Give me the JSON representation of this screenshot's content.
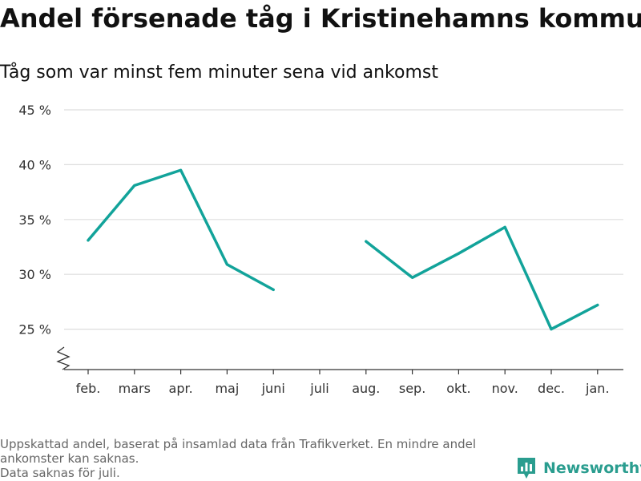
{
  "title": "Andel försenade tåg i Kristinehamns kommun",
  "subtitle": "Tåg som var minst fem minuter sena vid ankomst",
  "footnote": {
    "line1": "Uppskattad andel, baserat på insamlad data från Trafikverket. En mindre andel",
    "line2": "ankomster kan saknas.",
    "line3": "Data saknas för juli."
  },
  "logo": {
    "text": "Newsworthy",
    "icon": "bar-chart-logo-icon"
  },
  "colors": {
    "line": "#12a39a",
    "grid": "#dddddd",
    "axis": "#333333"
  },
  "chart_data": {
    "type": "line",
    "categories": [
      "feb.",
      "mars",
      "apr.",
      "maj",
      "juni",
      "juli",
      "aug.",
      "sep.",
      "okt.",
      "nov.",
      "dec.",
      "jan."
    ],
    "series": [
      {
        "values": [
          33.1,
          38.1,
          39.5,
          30.9,
          28.6,
          null,
          33.0,
          29.7,
          31.9,
          34.3,
          25.0,
          27.2
        ]
      }
    ],
    "y_ticks": [
      25,
      30,
      35,
      40,
      45
    ],
    "y_tick_labels": [
      "25 %",
      "30 %",
      "35 %",
      "40 %",
      "45 %"
    ],
    "ylim": [
      21.5,
      45
    ],
    "y_axis_break": true,
    "grid": true,
    "xlabel": "",
    "ylabel": ""
  }
}
